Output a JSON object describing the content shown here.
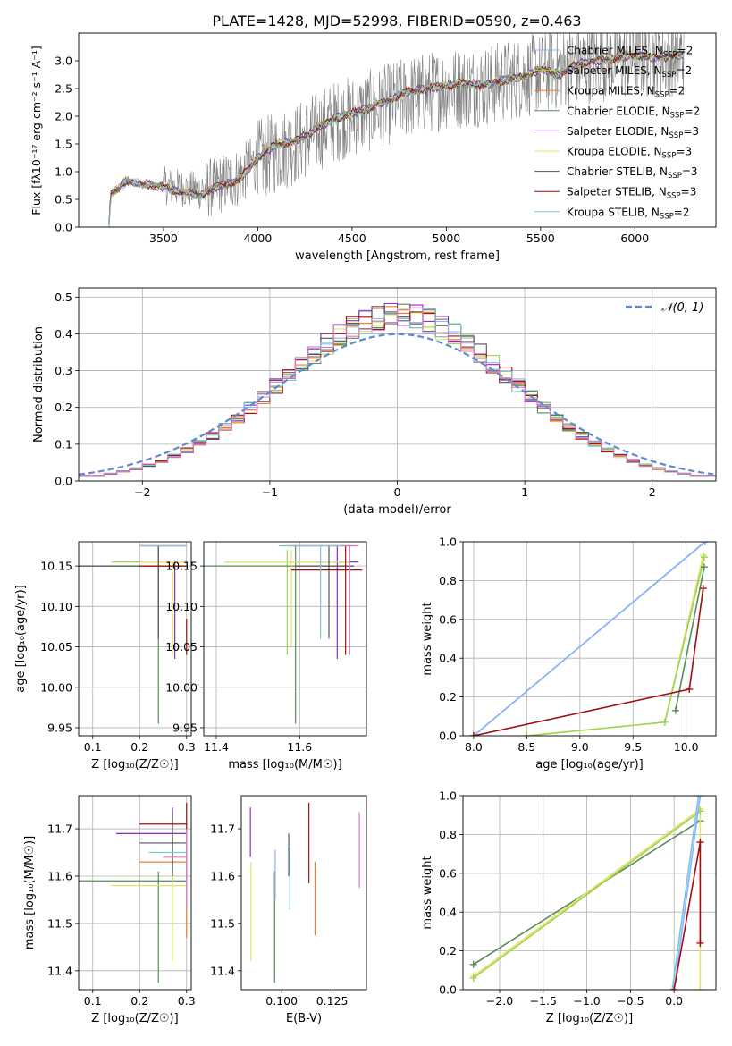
{
  "figure_title": "PLATE=1428, MJD=52998, FIBERID=0590, z=0.463",
  "colors": {
    "Chabrier MILES": "#8eb0ff",
    "Salpeter MILES": "#9fd34f",
    "Kroupa MILES": "#f07c2a",
    "Chabrier ELODIE": "#5a8a5a",
    "Salpeter ELODIE": "#8b2bd0",
    "Kroupa ELODIE": "#e3e36a",
    "Chabrier STELIB": "#555555",
    "Salpeter STELIB": "#a01010",
    "Kroupa STELIB": "#79c7d6",
    "normal_curve": "#5b8bd6",
    "grid": "#b0b0b0"
  },
  "chart_data": [
    {
      "id": "spectrum",
      "type": "line",
      "title": "PLATE=1428, MJD=52998, FIBERID=0590, z=0.463",
      "xlabel": "wavelength [Angstrom, rest frame]",
      "ylabel": "Flux [f_λ 10^-17 erg cm^-2 s^-1 A^-1]",
      "xlim": [
        3050,
        6430
      ],
      "ylim": [
        0,
        3.5
      ],
      "xticks": [
        3500,
        4000,
        4500,
        5000,
        5500,
        6000
      ],
      "yticks": [
        0.0,
        0.5,
        1.0,
        1.5,
        2.0,
        2.5,
        3.0
      ],
      "grid": false,
      "legend_position": "top-right",
      "legend": [
        {
          "label": "Chabrier MILES, N",
          "sub": "SSP",
          "post": "=2",
          "color": "#8eb0ff"
        },
        {
          "label": "Salpeter MILES, N",
          "sub": "SSP",
          "post": "=2",
          "color": "#9fd34f"
        },
        {
          "label": "Kroupa MILES, N",
          "sub": "SSP",
          "post": "=2",
          "color": "#f07c2a"
        },
        {
          "label": "Chabrier ELODIE, N",
          "sub": "SSP",
          "post": "=2",
          "color": "#5a8a5a"
        },
        {
          "label": "Salpeter ELODIE, N",
          "sub": "SSP",
          "post": "=3",
          "color": "#8b2bd0"
        },
        {
          "label": "Kroupa ELODIE, N",
          "sub": "SSP",
          "post": "=3",
          "color": "#e3e36a"
        },
        {
          "label": "Chabrier STELIB, N",
          "sub": "SSP",
          "post": "=3",
          "color": "#555555"
        },
        {
          "label": "Salpeter STELIB, N",
          "sub": "SSP",
          "post": "=3",
          "color": "#a01010"
        },
        {
          "label": "Kroupa STELIB, N",
          "sub": "SSP",
          "post": "=2",
          "color": "#79c7d6"
        }
      ],
      "data_series": {
        "name": "",
        "color": "#808080",
        "x_range": [
          3210,
          6260
        ],
        "continuum": [
          [
            3210,
            0.0
          ],
          [
            3220,
            0.55
          ],
          [
            3300,
            0.8
          ],
          [
            3500,
            0.75
          ],
          [
            3700,
            0.65
          ],
          [
            3900,
            0.9
          ],
          [
            4000,
            1.2
          ],
          [
            4200,
            1.5
          ],
          [
            4400,
            1.9
          ],
          [
            4600,
            2.1
          ],
          [
            4800,
            2.35
          ],
          [
            5000,
            2.5
          ],
          [
            5200,
            2.55
          ],
          [
            5400,
            2.7
          ],
          [
            5600,
            2.85
          ],
          [
            5800,
            3.0
          ],
          [
            6000,
            3.05
          ],
          [
            6260,
            3.1
          ]
        ]
      },
      "model_continuum": [
        [
          3210,
          0.0
        ],
        [
          3220,
          0.6
        ],
        [
          3300,
          0.82
        ],
        [
          3400,
          0.78
        ],
        [
          3500,
          0.72
        ],
        [
          3600,
          0.62
        ],
        [
          3700,
          0.58
        ],
        [
          3800,
          0.75
        ],
        [
          3900,
          0.85
        ],
        [
          4000,
          1.25
        ],
        [
          4100,
          1.5
        ],
        [
          4200,
          1.55
        ],
        [
          4300,
          1.75
        ],
        [
          4400,
          1.95
        ],
        [
          4500,
          2.05
        ],
        [
          4600,
          2.15
        ],
        [
          4700,
          2.3
        ],
        [
          4800,
          2.45
        ],
        [
          4900,
          2.5
        ],
        [
          5000,
          2.55
        ],
        [
          5100,
          2.6
        ],
        [
          5200,
          2.55
        ],
        [
          5300,
          2.65
        ],
        [
          5400,
          2.7
        ],
        [
          5500,
          2.85
        ],
        [
          5600,
          2.75
        ],
        [
          5700,
          2.95
        ],
        [
          5800,
          3.0
        ],
        [
          5900,
          3.05
        ],
        [
          6000,
          3.1
        ],
        [
          6100,
          3.05
        ],
        [
          6260,
          3.1
        ]
      ]
    },
    {
      "id": "residuals",
      "type": "line",
      "xlabel": "(data-model)/error",
      "ylabel": "Normed distribution",
      "xlim": [
        -2.5,
        2.5
      ],
      "ylim": [
        0,
        0.525
      ],
      "xticks": [
        -2,
        -1,
        0,
        1,
        2
      ],
      "yticks": [
        0.0,
        0.1,
        0.2,
        0.3,
        0.4,
        0.5
      ],
      "grid": true,
      "legend_position": "top-right",
      "legend": [
        {
          "label": "𝒩(0, 1)",
          "color": "#5b8bd6",
          "style": "dashed"
        }
      ],
      "bin_width": 0.1,
      "histogram_centers_range": [
        -2.5,
        2.5
      ],
      "histogram_peak": 0.45,
      "histogram_sigma": 0.9,
      "series": [
        {
          "color": "#8eb0ff"
        },
        {
          "color": "#9fd34f"
        },
        {
          "color": "#f07c2a"
        },
        {
          "color": "#5a8a5a"
        },
        {
          "color": "#8b2bd0"
        },
        {
          "color": "#e3e36a"
        },
        {
          "color": "#555555"
        },
        {
          "color": "#a01010"
        },
        {
          "color": "#79c7d6"
        },
        {
          "color": "#e377c2"
        }
      ]
    },
    {
      "id": "age_vs_Z",
      "type": "scatter",
      "xlabel": "Z [log₁₀(Z/Z☉)]",
      "ylabel": "age  [log₁₀(age/yr)]",
      "xlim": [
        0.07,
        0.31
      ],
      "ylim": [
        9.94,
        10.18
      ],
      "xticks": [
        0.1,
        0.2,
        0.3
      ],
      "yticks": [
        9.95,
        10.0,
        10.05,
        10.1,
        10.15
      ],
      "grid": true,
      "errorbars": [
        {
          "x": 0.3,
          "y": 10.175,
          "xlo": 0.2,
          "xhi": 0.3,
          "ylo": 10.175,
          "yhi": 10.175,
          "color": "#8eb0ff"
        },
        {
          "x": 0.27,
          "y": 10.155,
          "xlo": 0.14,
          "xhi": 0.3,
          "ylo": 10.04,
          "yhi": 10.155,
          "color": "#9fd34f"
        },
        {
          "x": 0.3,
          "y": 10.175,
          "xlo": 0.2,
          "xhi": 0.3,
          "ylo": 10.175,
          "yhi": 10.175,
          "color": "#f07c2a"
        },
        {
          "x": 0.24,
          "y": 10.15,
          "xlo": 0.07,
          "xhi": 0.3,
          "ylo": 9.955,
          "yhi": 10.175,
          "color": "#5a8a5a"
        },
        {
          "x": 0.275,
          "y": 10.155,
          "xlo": 0.27,
          "xhi": 0.3,
          "ylo": 10.035,
          "yhi": 10.155,
          "color": "#8b2bd0"
        },
        {
          "x": 0.27,
          "y": 10.155,
          "xlo": 0.2,
          "xhi": 0.3,
          "ylo": 10.04,
          "yhi": 10.155,
          "color": "#e3e36a"
        },
        {
          "x": 0.24,
          "y": 10.15,
          "xlo": 0.07,
          "xhi": 0.3,
          "ylo": 10.06,
          "yhi": 10.175,
          "color": "#555555"
        },
        {
          "x": 0.3,
          "y": 10.15,
          "xlo": 0.2,
          "xhi": 0.3,
          "ylo": 10.04,
          "yhi": 10.085,
          "color": "#a01010"
        },
        {
          "x": 0.3,
          "y": 10.175,
          "xlo": 0.2,
          "xhi": 0.3,
          "ylo": 10.175,
          "yhi": 10.175,
          "color": "#79c7d6"
        }
      ]
    },
    {
      "id": "age_vs_mass",
      "type": "scatter",
      "xlabel": "mass [log₁₀(M/M☉)]",
      "ylabel": "",
      "xlim": [
        11.37,
        11.76
      ],
      "ylim": [
        9.94,
        10.18
      ],
      "xticks": [
        11.4,
        11.6
      ],
      "yticks": [
        9.95,
        10.0,
        10.05,
        10.1,
        10.15
      ],
      "grid": true,
      "errorbars": [
        {
          "x": 11.66,
          "y": 10.175,
          "xlo": 11.58,
          "xhi": 11.73,
          "ylo": 10.175,
          "yhi": 10.175,
          "color": "#8eb0ff"
        },
        {
          "x": 11.57,
          "y": 10.155,
          "xlo": 11.42,
          "xhi": 11.72,
          "ylo": 10.04,
          "yhi": 10.17,
          "color": "#9fd34f"
        },
        {
          "x": 11.64,
          "y": 10.175,
          "xlo": 11.56,
          "xhi": 11.7,
          "ylo": 10.175,
          "yhi": 10.175,
          "color": "#f07c2a"
        },
        {
          "x": 11.59,
          "y": 10.15,
          "xlo": 11.37,
          "xhi": 11.73,
          "ylo": 9.955,
          "yhi": 10.175,
          "color": "#5a8a5a"
        },
        {
          "x": 11.69,
          "y": 10.155,
          "xlo": 11.64,
          "xhi": 11.74,
          "ylo": 10.035,
          "yhi": 10.175,
          "color": "#8b2bd0"
        },
        {
          "x": 11.58,
          "y": 10.155,
          "xlo": 11.42,
          "xhi": 11.72,
          "ylo": 10.05,
          "yhi": 10.17,
          "color": "#e3e36a"
        },
        {
          "x": 11.67,
          "y": 10.15,
          "xlo": 11.59,
          "xhi": 11.73,
          "ylo": 10.06,
          "yhi": 10.175,
          "color": "#555555"
        },
        {
          "x": 11.71,
          "y": 10.145,
          "xlo": 11.58,
          "xhi": 11.75,
          "ylo": 10.04,
          "yhi": 10.175,
          "color": "#a01010"
        },
        {
          "x": 11.65,
          "y": 10.175,
          "xlo": 11.55,
          "xhi": 11.73,
          "ylo": 10.06,
          "yhi": 10.175,
          "color": "#79c7d6"
        },
        {
          "x": 11.72,
          "y": 10.175,
          "xlo": 11.7,
          "xhi": 11.74,
          "ylo": 10.04,
          "yhi": 10.175,
          "color": "#e377c2"
        }
      ]
    },
    {
      "id": "weight_vs_age",
      "type": "line",
      "xlabel": "age  [log₁₀(age/yr)]",
      "ylabel": "mass weight",
      "xlim": [
        7.9,
        10.28
      ],
      "ylim": [
        0,
        1.0
      ],
      "xticks": [
        8.0,
        8.5,
        9.0,
        9.5,
        10.0
      ],
      "yticks": [
        0.0,
        0.2,
        0.4,
        0.6,
        0.8,
        1.0
      ],
      "grid": true,
      "series": [
        {
          "color": "#79c7d6",
          "x": [
            8.0,
            10.175
          ],
          "y": [
            0.0,
            1.0
          ]
        },
        {
          "color": "#8eb0ff",
          "x": [
            8.0,
            10.18
          ],
          "y": [
            0.0,
            1.0
          ]
        },
        {
          "color": "#e3e36a",
          "x": [
            8.5,
            9.8,
            10.16
          ],
          "y": [
            0.0,
            0.07,
            0.93
          ]
        },
        {
          "color": "#9fd34f",
          "x": [
            8.5,
            9.8,
            10.17
          ],
          "y": [
            0.0,
            0.07,
            0.92
          ]
        },
        {
          "color": "#5a8a5a",
          "x": [
            9.9,
            10.17
          ],
          "y": [
            0.13,
            0.87
          ]
        },
        {
          "color": "#a01010",
          "x": [
            8.0,
            10.03,
            10.16
          ],
          "y": [
            0.0,
            0.24,
            0.76
          ]
        }
      ]
    },
    {
      "id": "mass_vs_Z",
      "type": "scatter",
      "xlabel": "Z [log₁₀(Z/Z☉)]",
      "ylabel": "mass [log₁₀(M/M☉)]",
      "xlim": [
        0.07,
        0.31
      ],
      "ylim": [
        11.36,
        11.77
      ],
      "xticks": [
        0.1,
        0.2,
        0.3
      ],
      "yticks": [
        11.4,
        11.5,
        11.6,
        11.7
      ],
      "grid": true,
      "errorbars": [
        {
          "x": 0.27,
          "y": 11.69,
          "xlo": 0.15,
          "xhi": 0.3,
          "ylo": 11.69,
          "yhi": 11.69,
          "color": "#8eb0ff"
        },
        {
          "x": 0.27,
          "y": 11.58,
          "xlo": 0.14,
          "xhi": 0.3,
          "ylo": 11.42,
          "yhi": 11.72,
          "color": "#9fd34f"
        },
        {
          "x": 0.3,
          "y": 11.63,
          "xlo": 0.2,
          "xhi": 0.3,
          "ylo": 11.47,
          "yhi": 11.69,
          "color": "#f07c2a"
        },
        {
          "x": 0.24,
          "y": 11.59,
          "xlo": 0.07,
          "xhi": 0.3,
          "ylo": 11.375,
          "yhi": 11.61,
          "color": "#5a8a5a"
        },
        {
          "x": 0.27,
          "y": 11.69,
          "xlo": 0.15,
          "xhi": 0.3,
          "ylo": 11.6,
          "yhi": 11.745,
          "color": "#8b2bd0"
        },
        {
          "x": 0.27,
          "y": 11.58,
          "xlo": 0.14,
          "xhi": 0.3,
          "ylo": 11.42,
          "yhi": 11.72,
          "color": "#e3e36a"
        },
        {
          "x": 0.27,
          "y": 11.67,
          "xlo": 0.2,
          "xhi": 0.3,
          "ylo": 11.6,
          "yhi": 11.735,
          "color": "#555555"
        },
        {
          "x": 0.3,
          "y": 11.71,
          "xlo": 0.2,
          "xhi": 0.3,
          "ylo": 11.59,
          "yhi": 11.755,
          "color": "#a01010"
        },
        {
          "x": 0.3,
          "y": 11.65,
          "xlo": 0.22,
          "xhi": 0.3,
          "ylo": 11.53,
          "yhi": 11.69,
          "color": "#79c7d6"
        },
        {
          "x": 0.3,
          "y": 11.64,
          "xlo": 0.25,
          "xhi": 0.3,
          "ylo": 11.53,
          "yhi": 11.7,
          "color": "#e377c2"
        }
      ]
    },
    {
      "id": "mass_vs_EBV",
      "type": "scatter",
      "xlabel": "E(B-V)",
      "ylabel": "",
      "xlim": [
        0.08,
        0.142
      ],
      "ylim": [
        11.36,
        11.77
      ],
      "xticks": [
        0.1,
        0.125
      ],
      "yticks": [
        11.4,
        11.5,
        11.6,
        11.7
      ],
      "grid": false,
      "vlines": [
        {
          "x": 0.0845,
          "ylo": 11.64,
          "yhi": 11.745,
          "color": "#8b2bd0"
        },
        {
          "x": 0.0848,
          "ylo": 11.42,
          "yhi": 11.63,
          "color": "#e3e36a"
        },
        {
          "x": 0.0965,
          "ylo": 11.375,
          "yhi": 11.61,
          "color": "#5a8a5a"
        },
        {
          "x": 0.0968,
          "ylo": 11.55,
          "yhi": 11.655,
          "color": "#8eb0ff"
        },
        {
          "x": 0.1035,
          "ylo": 11.6,
          "yhi": 11.69,
          "color": "#555555"
        },
        {
          "x": 0.104,
          "ylo": 11.53,
          "yhi": 11.66,
          "color": "#79c7d6"
        },
        {
          "x": 0.1135,
          "ylo": 11.585,
          "yhi": 11.755,
          "color": "#a01010"
        },
        {
          "x": 0.1165,
          "ylo": 11.475,
          "yhi": 11.63,
          "color": "#f07c2a"
        },
        {
          "x": 0.1385,
          "ylo": 11.575,
          "yhi": 11.735,
          "color": "#e377c2"
        }
      ]
    },
    {
      "id": "weight_vs_Z",
      "type": "line",
      "xlabel": "Z [log₁₀(Z/Z☉)]",
      "ylabel": "mass weight",
      "xlim": [
        -2.42,
        0.48
      ],
      "ylim": [
        0,
        1.0
      ],
      "xticks": [
        -2.0,
        -1.5,
        -1.0,
        -0.5,
        0.0
      ],
      "yticks": [
        0.0,
        0.2,
        0.4,
        0.6,
        0.8,
        1.0
      ],
      "grid": true,
      "series": [
        {
          "color": "#5a8a5a",
          "x": [
            -2.3,
            0.3
          ],
          "y": [
            0.13,
            0.87
          ]
        },
        {
          "color": "#e3e36a",
          "x": [
            -2.3,
            0.3,
            0.3
          ],
          "y": [
            0.07,
            0.93,
            0.0
          ]
        },
        {
          "color": "#9fd34f",
          "x": [
            -2.3,
            0.3
          ],
          "y": [
            0.06,
            0.92
          ]
        },
        {
          "color": "#8eb0ff",
          "x": [
            0.0,
            0.3
          ],
          "y": [
            0.0,
            1.0
          ]
        },
        {
          "color": "#79c7d6",
          "x": [
            -0.02,
            0.28
          ],
          "y": [
            0.0,
            1.0
          ]
        },
        {
          "color": "#a01010",
          "x": [
            0.0,
            0.3,
            0.3
          ],
          "y": [
            0.0,
            0.76,
            0.24
          ]
        }
      ]
    }
  ]
}
